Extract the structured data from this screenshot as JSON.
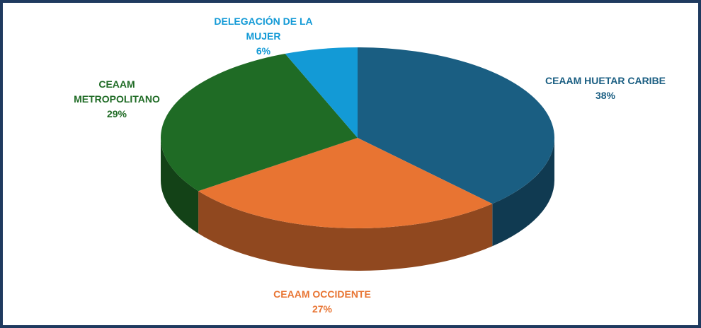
{
  "chart_data": {
    "type": "pie",
    "categories": [
      "CEAAM HUETAR CARIBE",
      "CEAAM OCCIDENTE",
      "CEAAM METROPOLITANO",
      "DELEGACIÓN DE LA MUJER"
    ],
    "values": [
      38,
      27,
      29,
      6
    ],
    "value_labels": [
      "38%",
      "27%",
      "29%",
      "6%"
    ],
    "colors": [
      "#1a5e82",
      "#e87432",
      "#1f6b25",
      "#139ad6"
    ]
  }
}
